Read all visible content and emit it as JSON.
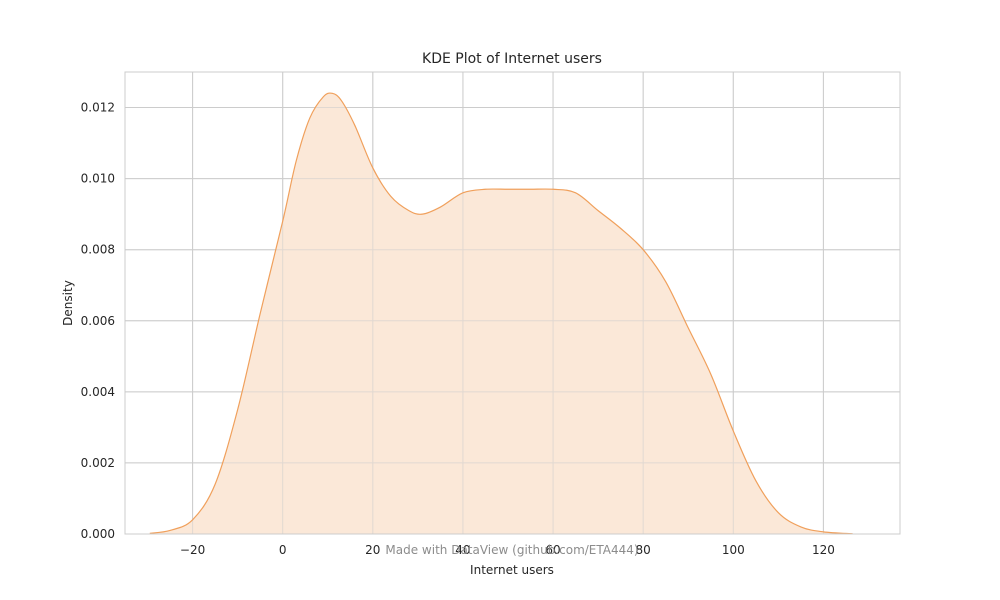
{
  "chart_data": {
    "type": "area",
    "title": "KDE Plot of Internet users",
    "xlabel": "Internet users",
    "ylabel": "Density",
    "xlim": [
      -35,
      137
    ],
    "ylim": [
      0,
      0.013
    ],
    "xticks": [
      -20,
      0,
      20,
      40,
      60,
      80,
      100,
      120
    ],
    "xtick_labels": [
      "−20",
      "0",
      "20",
      "40",
      "60",
      "80",
      "100",
      "120"
    ],
    "yticks": [
      0,
      0.002,
      0.004,
      0.006,
      0.008,
      0.01,
      0.012
    ],
    "ytick_labels": [
      "0.000",
      "0.002",
      "0.004",
      "0.006",
      "0.008",
      "0.010",
      "0.012"
    ],
    "grid": true,
    "series": [
      {
        "x": [
          -29.5,
          -25,
          -20,
          -15,
          -10,
          -5,
          0,
          3,
          6,
          9,
          11,
          13,
          16,
          20,
          24,
          28,
          31,
          35,
          40,
          45,
          50,
          55,
          60,
          65,
          70,
          75,
          80,
          85,
          90,
          95,
          100,
          105,
          110,
          115,
          120,
          126.5
        ],
        "y": [
          2e-05,
          0.0001,
          0.0004,
          0.0014,
          0.0035,
          0.0062,
          0.0088,
          0.0105,
          0.0117,
          0.0123,
          0.0124,
          0.0122,
          0.0115,
          0.0103,
          0.0095,
          0.0091,
          0.009,
          0.0092,
          0.0096,
          0.0097,
          0.0097,
          0.0097,
          0.0097,
          0.0096,
          0.0091,
          0.0086,
          0.008,
          0.0071,
          0.0058,
          0.0045,
          0.0029,
          0.0015,
          0.0006,
          0.0002,
          6e-05,
          5e-06
        ]
      }
    ],
    "colors": {
      "line": "#f0a05c",
      "fill": "#fbe8d8",
      "grid": "#cccccc",
      "frame": "#cccccc"
    },
    "watermark": "Made with DataView (github.com/ETA444)"
  }
}
